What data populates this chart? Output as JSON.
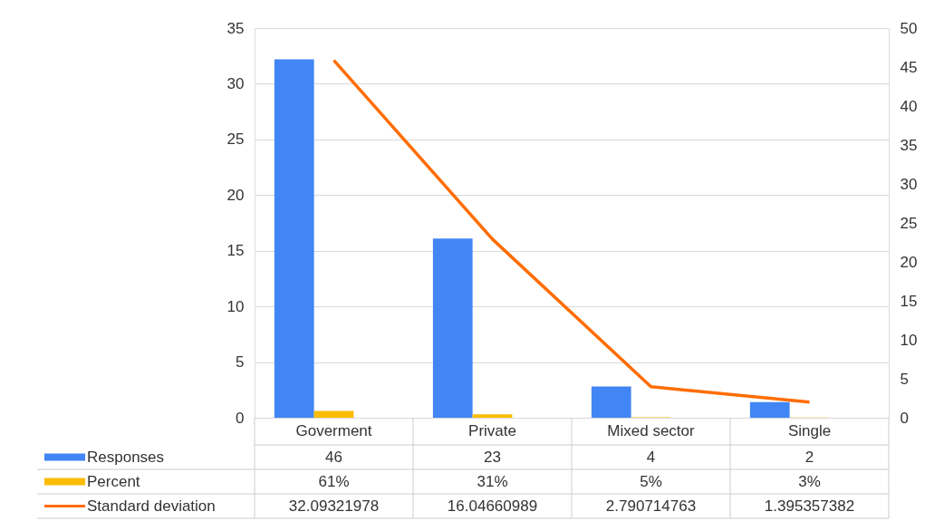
{
  "chart_data": {
    "type": "bar",
    "categories": [
      "Goverment",
      "Private",
      "Mixed sector",
      "Single"
    ],
    "series": [
      {
        "name": "Responses",
        "color": "#4285f4",
        "axis": "y2",
        "values": [
          46,
          23,
          4,
          2
        ],
        "value_labels": [
          "46",
          "23",
          "4",
          "2"
        ]
      },
      {
        "name": "Percent",
        "color": "#fbbc04",
        "values": [
          0.61,
          0.31,
          0.05,
          0.03
        ],
        "value_labels": [
          "61%",
          "31%",
          "5%",
          "3%"
        ]
      },
      {
        "name": "Standard deviation",
        "type": "line",
        "color": "#ff6d01",
        "values": [
          32.09321978,
          16.04660989,
          2.790714763,
          1.395357382
        ],
        "value_labels": [
          "32.09321978",
          "16.04660989",
          "2.790714763",
          "1.395357382"
        ]
      }
    ],
    "ylim": [
      0,
      35
    ],
    "yticks": [
      0,
      5,
      10,
      15,
      20,
      25,
      30,
      35
    ],
    "y2lim": [
      0,
      50
    ],
    "y2ticks": [
      0,
      5,
      10,
      15,
      20,
      25,
      30,
      35,
      40,
      45,
      50
    ],
    "grid": "y",
    "legend": "bottom"
  }
}
